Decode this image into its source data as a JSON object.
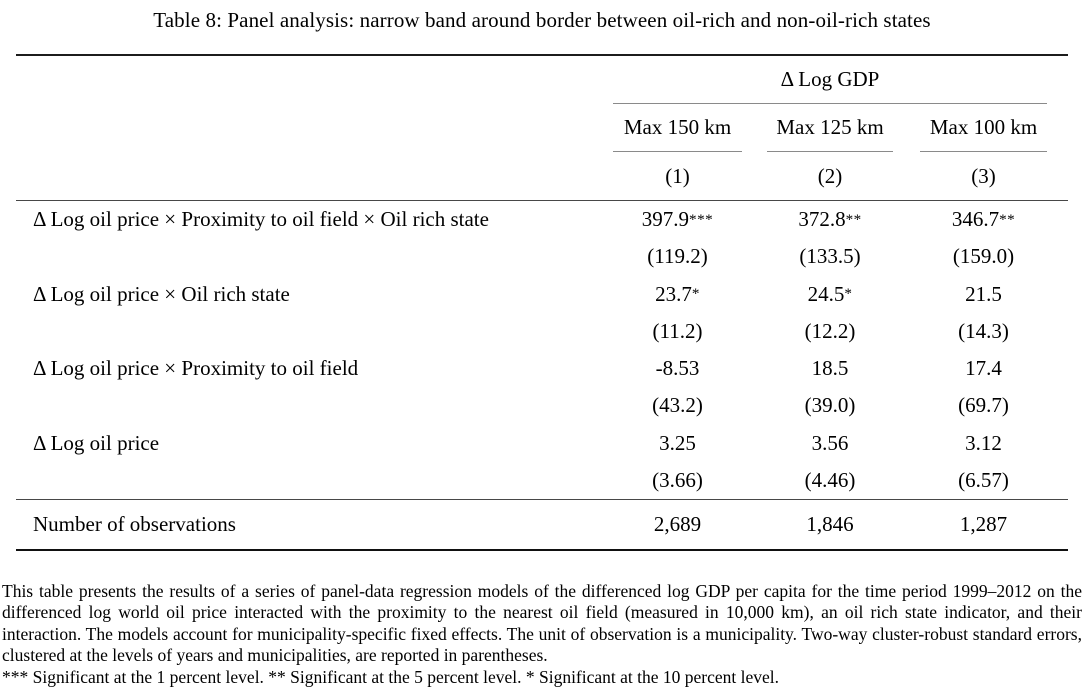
{
  "title": "Table 8: Panel analysis: narrow band around border between oil-rich and non-oil-rich states",
  "table": {
    "group_header": "Δ Log GDP",
    "column_headers": [
      "Max 150 km",
      "Max 125 km",
      "Max 100 km"
    ],
    "column_numbers": [
      "(1)",
      "(2)",
      "(3)"
    ],
    "rows": [
      {
        "label": "Δ Log oil price × Proximity to oil field × Oil rich state",
        "coefs": [
          "397.9",
          "372.8",
          "346.7"
        ],
        "stars": [
          "***",
          "**",
          "**"
        ],
        "ses": [
          "(119.2)",
          "(133.5)",
          "(159.0)"
        ]
      },
      {
        "label": "Δ Log oil price × Oil rich state",
        "coefs": [
          "23.7",
          "24.5",
          "21.5"
        ],
        "stars": [
          "*",
          "*",
          ""
        ],
        "ses": [
          "(11.2)",
          "(12.2)",
          "(14.3)"
        ]
      },
      {
        "label": "Δ Log oil price × Proximity to oil field",
        "coefs": [
          "-8.53",
          "18.5",
          "17.4"
        ],
        "stars": [
          "",
          "",
          ""
        ],
        "ses": [
          "(43.2)",
          "(39.0)",
          "(69.7)"
        ]
      },
      {
        "label": "Δ Log oil price",
        "coefs": [
          "3.25",
          "3.56",
          "3.12"
        ],
        "stars": [
          "",
          "",
          ""
        ],
        "ses": [
          "(3.66)",
          "(4.46)",
          "(6.57)"
        ]
      }
    ],
    "summary_row": {
      "label": "Number of observations",
      "values": [
        "2,689",
        "1,846",
        "1,287"
      ]
    }
  },
  "notes": {
    "description": "This table presents the results of a series of panel-data regression models of the differenced log GDP per capita for the time period 1999–2012 on the differenced log world oil price interacted with the proximity to the nearest oil field (measured in 10,000 km), an oil rich state indicator, and their interaction. The models account for municipality-specific fixed effects. The unit of observation is a municipality. Two-way cluster-robust standard errors, clustered at the levels of years and municipalities, are reported in parentheses.",
    "significance": "*** Significant at the 1 percent level. ** Significant at the 5 percent level. * Significant at the 10 percent level."
  }
}
